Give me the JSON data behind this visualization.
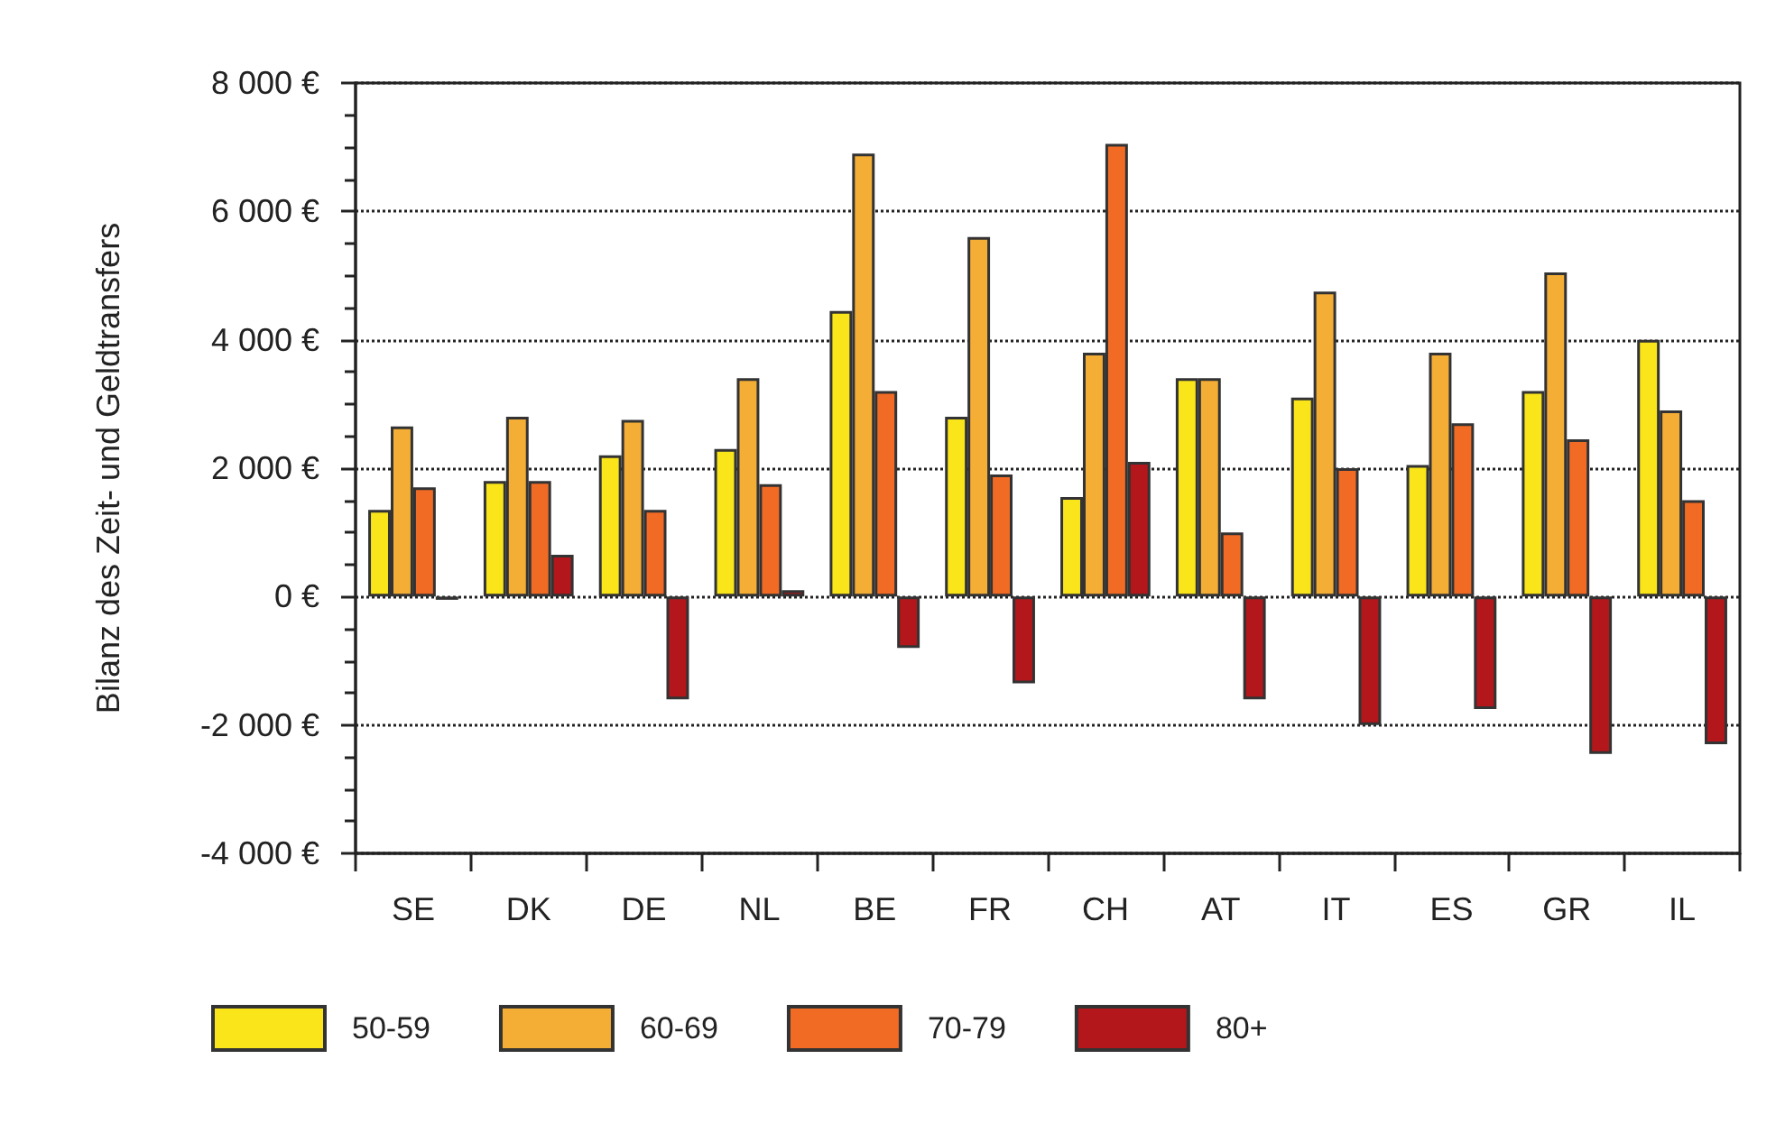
{
  "chart_data": {
    "type": "bar",
    "ylabel": "Bilanz des Zeit- und Geldtransfers",
    "categories": [
      "SE",
      "DK",
      "DE",
      "NL",
      "BE",
      "FR",
      "CH",
      "AT",
      "IT",
      "ES",
      "GR",
      "IL"
    ],
    "series": [
      {
        "name": "50-59",
        "color": "#f9e51a",
        "values": [
          1350,
          1800,
          2200,
          2300,
          4450,
          2800,
          1550,
          3400,
          3100,
          2050,
          3200,
          4000
        ]
      },
      {
        "name": "60-69",
        "color": "#f5ae35",
        "values": [
          2650,
          2800,
          2750,
          3400,
          6900,
          5600,
          3800,
          3400,
          4750,
          3800,
          5050,
          2900
        ]
      },
      {
        "name": "70-79",
        "color": "#f26b24",
        "values": [
          1700,
          1800,
          1350,
          1750,
          3200,
          1900,
          7050,
          1000,
          2000,
          2700,
          2450,
          1500
        ]
      },
      {
        "name": "80+",
        "color": "#b3161b",
        "values": [
          -50,
          650,
          -1600,
          100,
          -800,
          -1350,
          2100,
          -1600,
          -2000,
          -1750,
          -2450,
          -2300
        ]
      }
    ],
    "ylim": [
      -4000,
      8000
    ],
    "yticks": [
      {
        "value": -4000,
        "label": "-4 000 €"
      },
      {
        "value": -2000,
        "label": "-2 000 €"
      },
      {
        "value": 0,
        "label": "0 €"
      },
      {
        "value": 2000,
        "label": "2 000 €"
      },
      {
        "value": 4000,
        "label": "4 000 €"
      },
      {
        "value": 6000,
        "label": "6 000 €"
      },
      {
        "value": 8000,
        "label": "8 000 €"
      }
    ],
    "grid": "y",
    "legend": "bottom left"
  }
}
